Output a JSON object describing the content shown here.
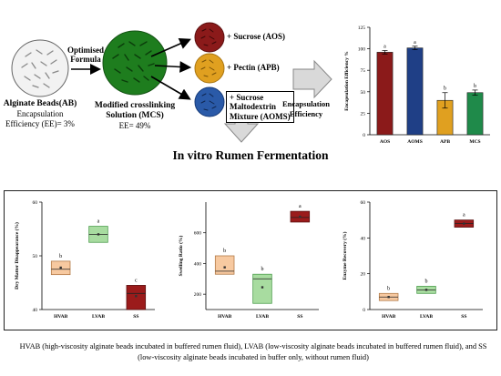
{
  "top": {
    "ab_title": "Alginate Beads(AB)",
    "ab_sub1": "Encapsulation",
    "ab_sub2": "Efficiency (EE)= 3%",
    "arrow_label1": "Optimised",
    "arrow_label2": "Formula",
    "mcs_title1": "Modified crosslinking",
    "mcs_title2": "Solution (MCS)",
    "mcs_ee": "EE= 49%",
    "aos_label": "+ Sucrose (AOS)",
    "apb_label": "+ Pectin (APB)",
    "aoms_label1": "+ Sucrose",
    "aoms_label2": "Maltodextrin",
    "aoms_label3": "Mixture (AOMS)",
    "ee_arrow1": "Encapsulation",
    "ee_arrow2": "Efficiency",
    "fermentation_title": "In vitro Rumen Fermentation"
  },
  "colors": {
    "aos": "#8b1a1a",
    "aoms": "#1f3f86",
    "apb": "#e0a020",
    "mcs": "#1f8a4a",
    "hvab": "#f7c9a0",
    "lvab": "#a8dca0",
    "ss": "#9b1b1b"
  },
  "caption": "HVAB (high-viscosity alginate beads incubated in buffered rumen fluid), LVAB (low-viscosity alginate beads incubated in buffered rumen fluid), and SS (low-viscosity alginate beads incubated in buffer only, without rumen fluid)",
  "chart_data": [
    {
      "type": "bar",
      "title": "",
      "xlabel": "",
      "ylabel": "Encapsulation Efficiency %",
      "categories": [
        "AOS",
        "AOMS",
        "APB",
        "MCS"
      ],
      "values": [
        96,
        101,
        40,
        49
      ],
      "errors": [
        2,
        2,
        9,
        3
      ],
      "letters": [
        "a",
        "a",
        "b",
        "b"
      ],
      "ylim": [
        0,
        125
      ],
      "yticks": [
        "0",
        "25",
        "50",
        "75",
        "100",
        "125"
      ],
      "grid": false
    },
    {
      "type": "box",
      "title": "",
      "ylabel": "Dry Matter Disappearance (%)",
      "categories": [
        "HVAB",
        "LVAB",
        "SS"
      ],
      "boxes": [
        {
          "q1": 46.5,
          "median": 47.5,
          "q3": 49,
          "mean": 47.8
        },
        {
          "q1": 52.5,
          "median": 54,
          "q3": 55.5,
          "mean": 54
        },
        {
          "q1": 40,
          "median": 43,
          "q3": 44.5,
          "mean": 42.5
        }
      ],
      "letters": [
        "b",
        "a",
        "c"
      ],
      "ylim": [
        40,
        60
      ],
      "yticks": [
        "40",
        "50",
        "60"
      ]
    },
    {
      "type": "box",
      "title": "",
      "ylabel": "Swelling Ratio (%)",
      "categories": [
        "HVAB",
        "LVAB",
        "SS"
      ],
      "boxes": [
        {
          "q1": 330,
          "median": 350,
          "q3": 450,
          "mean": 375
        },
        {
          "q1": 140,
          "median": 300,
          "q3": 330,
          "mean": 245
        },
        {
          "q1": 670,
          "median": 700,
          "q3": 740,
          "mean": 705
        }
      ],
      "letters": [
        "b",
        "b",
        "a"
      ],
      "ylim": [
        100,
        800
      ],
      "yticks": [
        "200",
        "400",
        "600"
      ]
    },
    {
      "type": "box",
      "title": "",
      "ylabel": "Enzyme Recovery (%)",
      "categories": [
        "HVAB",
        "LVAB",
        "SS"
      ],
      "boxes": [
        {
          "q1": 5,
          "median": 7,
          "q3": 9,
          "mean": 7
        },
        {
          "q1": 9,
          "median": 11,
          "q3": 13,
          "mean": 11
        },
        {
          "q1": 46,
          "median": 48,
          "q3": 50,
          "mean": 48
        }
      ],
      "letters": [
        "b",
        "b",
        "a"
      ],
      "ylim": [
        0,
        60
      ],
      "yticks": [
        "0",
        "20",
        "40",
        "60"
      ]
    }
  ]
}
